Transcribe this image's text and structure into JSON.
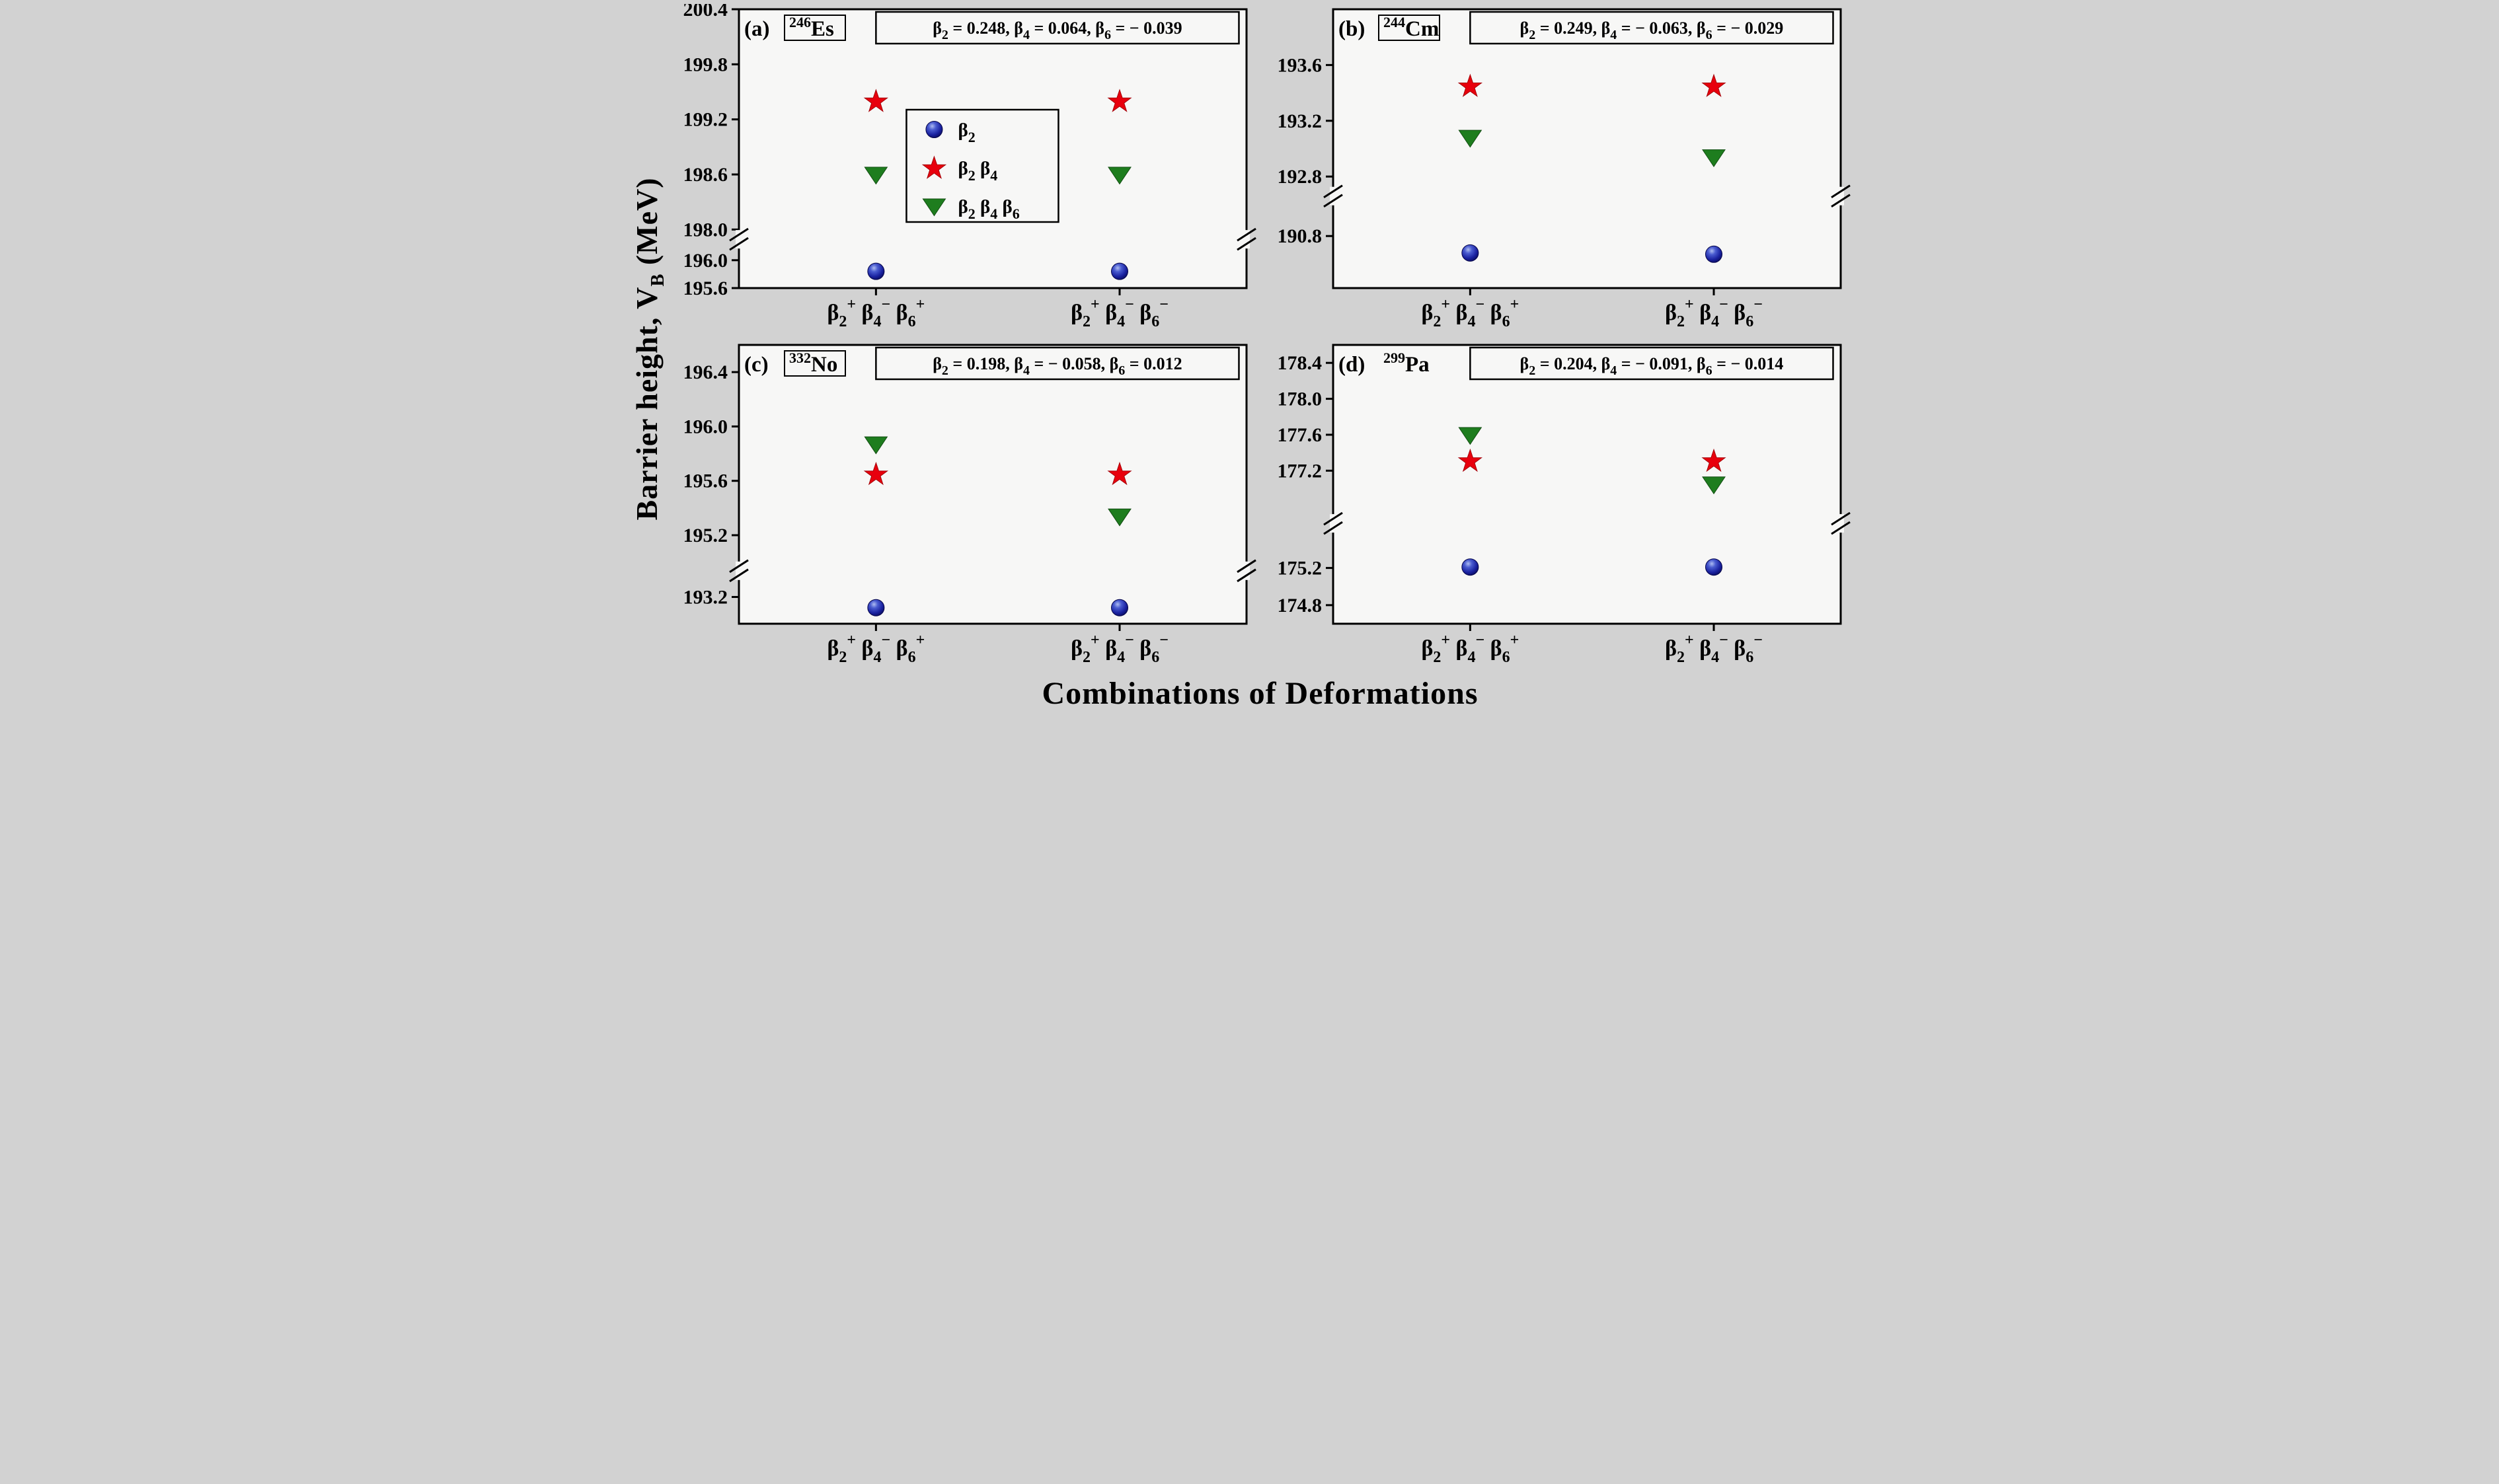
{
  "figure": {
    "background": "#d2d2d2",
    "panel_background": "#f7f7f6",
    "ylabel": {
      "pre": "Barrier height, V",
      "sub": "B",
      "post": " (MeV)"
    },
    "xlabel": "Combinations of Deformations"
  },
  "legend": {
    "items": [
      {
        "marker": "circle",
        "parts": [
          "2"
        ]
      },
      {
        "marker": "star",
        "parts": [
          "2",
          "4"
        ]
      },
      {
        "marker": "triangle",
        "parts": [
          "2",
          "4",
          "6"
        ]
      }
    ]
  },
  "series_styles": [
    {
      "key": "circle",
      "marker": "circle",
      "color": "#1b2bb0"
    },
    {
      "key": "star",
      "marker": "star",
      "color": "#e8000d"
    },
    {
      "key": "triangle",
      "marker": "triangle-down",
      "color": "#1e7d1e"
    }
  ],
  "categories": [
    {
      "parts": [
        {
          "sub": "2",
          "sup": "+"
        },
        {
          "sub": "4",
          "sup": "−"
        },
        {
          "sub": "6",
          "sup": "+"
        }
      ]
    },
    {
      "parts": [
        {
          "sub": "2",
          "sup": "+"
        },
        {
          "sub": "4",
          "sup": "−"
        },
        {
          "sub": "6",
          "sup": "−"
        }
      ]
    }
  ],
  "chart_data": [
    {
      "type": "scatter",
      "panel_label": "(a)",
      "nuclide": {
        "mass": "246",
        "symbol": "Es",
        "boxed": true
      },
      "params": [
        {
          "sub": "2",
          "value": "0.248"
        },
        {
          "sub": "4",
          "value": "0.064"
        },
        {
          "sub": "6",
          "value": "− 0.039"
        }
      ],
      "axis": {
        "upper": {
          "min": 198.0,
          "max": 200.4,
          "bottom_frac": 0.79,
          "ticks": [
            198.0,
            198.6,
            199.2,
            199.8,
            200.4
          ]
        },
        "lower": {
          "min": 195.6,
          "max": 196.1,
          "top_frac": 0.875,
          "ticks": [
            195.6,
            196.0
          ]
        },
        "break_frac": 0.825
      },
      "series": {
        "circle": [
          195.84,
          195.84
        ],
        "star": [
          199.4,
          199.4
        ],
        "triangle": [
          198.6,
          198.6
        ]
      },
      "show_legend": true
    },
    {
      "type": "scatter",
      "panel_label": "(b)",
      "nuclide": {
        "mass": "244",
        "symbol": "Cm",
        "boxed": true
      },
      "params": [
        {
          "sub": "2",
          "value": "0.249"
        },
        {
          "sub": "4",
          "value": "− 0.063"
        },
        {
          "sub": "6",
          "value": "− 0.029"
        }
      ],
      "axis": {
        "upper": {
          "min": 192.8,
          "max": 194.0,
          "bottom_frac": 0.6,
          "ticks": [
            192.8,
            193.2,
            193.6
          ]
        },
        "lower": {
          "min": 190.4,
          "max": 191.0,
          "top_frac": 0.72,
          "ticks": [
            190.8
          ]
        },
        "break_frac": 0.67
      },
      "series": {
        "circle": [
          190.67,
          190.66
        ],
        "star": [
          193.45,
          193.45
        ],
        "triangle": [
          193.08,
          192.94
        ]
      },
      "show_legend": false
    },
    {
      "type": "scatter",
      "panel_label": "(c)",
      "nuclide": {
        "mass": "332",
        "symbol": "No",
        "boxed": true
      },
      "params": [
        {
          "sub": "2",
          "value": "0.198"
        },
        {
          "sub": "4",
          "value": "− 0.058"
        },
        {
          "sub": "6",
          "value": "0.012"
        }
      ],
      "axis": {
        "upper": {
          "min": 195.0,
          "max": 196.6,
          "bottom_frac": 0.78,
          "ticks": [
            195.2,
            195.6,
            196.0,
            196.4
          ]
        },
        "lower": {
          "min": 192.9,
          "max": 193.4,
          "top_frac": 0.84,
          "ticks": [
            193.2
          ]
        },
        "break_frac": 0.81
      },
      "series": {
        "circle": [
          193.08,
          193.08
        ],
        "star": [
          195.65,
          195.65
        ],
        "triangle": [
          195.87,
          195.34
        ]
      },
      "show_legend": false
    },
    {
      "type": "scatter",
      "panel_label": "(d)",
      "nuclide": {
        "mass": "299",
        "symbol": "Pa",
        "boxed": false
      },
      "params": [
        {
          "sub": "2",
          "value": "0.204"
        },
        {
          "sub": "4",
          "value": "− 0.091"
        },
        {
          "sub": "6",
          "value": "− 0.014"
        }
      ],
      "axis": {
        "upper": {
          "min": 176.8,
          "max": 178.6,
          "bottom_frac": 0.58,
          "ticks": [
            177.2,
            177.6,
            178.0,
            178.4
          ]
        },
        "lower": {
          "min": 174.6,
          "max": 175.5,
          "top_frac": 0.7,
          "ticks": [
            174.8,
            175.2
          ]
        },
        "break_frac": 0.64
      },
      "series": {
        "circle": [
          175.21,
          175.21
        ],
        "star": [
          177.31,
          177.31
        ],
        "triangle": [
          177.6,
          177.05
        ]
      },
      "show_legend": false
    }
  ]
}
